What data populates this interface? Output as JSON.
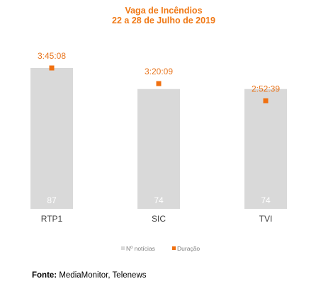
{
  "chart_data": {
    "type": "bar",
    "title": "Vaga de Incêndios",
    "subtitle": "22 a 28 de Julho de 2019",
    "categories": [
      "RTP1",
      "SIC",
      "TVI"
    ],
    "series": [
      {
        "name": "Nº notícias",
        "type": "bar",
        "values": [
          87,
          74,
          74
        ],
        "labels": [
          "87",
          "74",
          "74"
        ],
        "color": "#d9d9d9"
      },
      {
        "name": "Duração",
        "type": "scatter",
        "values": [
          "3:45:08",
          "3:20:09",
          "2:52:39"
        ],
        "labels": [
          "3:45:08",
          "3:20:09",
          "2:52:39"
        ],
        "color": "#f07010"
      }
    ],
    "legend": {
      "position": "bottom"
    },
    "grid": false
  },
  "source": {
    "label": "Fonte:",
    "text": " MediaMonitor, Telenews"
  }
}
